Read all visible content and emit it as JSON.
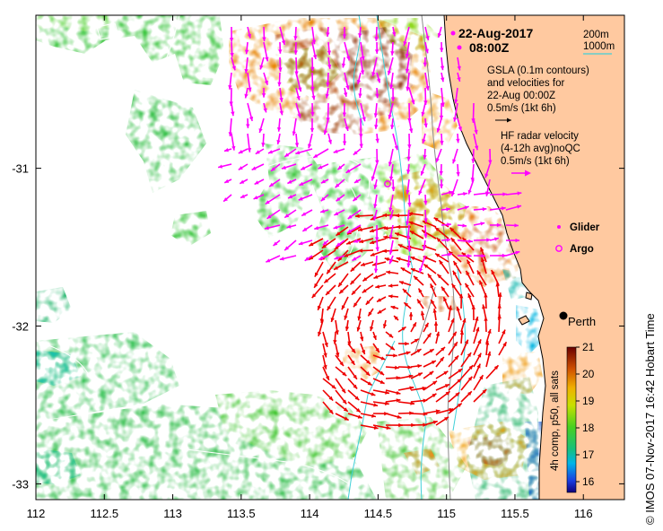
{
  "map": {
    "lon_range": [
      112,
      116.3
    ],
    "lat_range": [
      -33.1,
      -30.03
    ],
    "lon_ticks": [
      112,
      112.5,
      113,
      113.5,
      114,
      114.5,
      115,
      115.5,
      116
    ],
    "lon_labels": [
      "112",
      "112.5",
      "113",
      "113.5",
      "114",
      "114.5",
      "115",
      "115.5",
      "116"
    ],
    "lat_ticks": [
      -31,
      -32,
      -33
    ],
    "lat_labels": [
      "-31",
      "-32",
      "-33"
    ]
  },
  "header": {
    "date": "22-Aug-2017",
    "time": "08:00Z"
  },
  "legend": {
    "depth_200": "200m",
    "depth_1000": "1000m",
    "gsla_line1": "GSLA (0.1m contours)",
    "gsla_line2": "and velocities for",
    "gsla_line3": "22-Aug 00:00Z",
    "gsla_line4": "0.5m/s (1kt 6h)",
    "hf_line1": "HF radar velocity",
    "hf_line2": "(4-12h avg)noQC",
    "hf_line3": "0.5m/s (1kt 6h)",
    "glider": "Glider",
    "argo": "Argo"
  },
  "city": {
    "name": "Perth"
  },
  "colorbar": {
    "title": "4h comp, p50, all sats",
    "labels": [
      "16",
      "17",
      "18",
      "19",
      "20",
      "21"
    ],
    "range": [
      15.6,
      21
    ]
  },
  "credit": {
    "text": "©  IMOS 07-Nov-2017 16:42 Hobart Time"
  },
  "colors": {
    "land": "#ffc9a0",
    "gsla_arrow": "#ff00ff",
    "hf_arrow": "#ee0000",
    "bathy_200": "#8a8a8a",
    "bathy_1000": "#40d0d8",
    "argo": "#ff00ff"
  }
}
